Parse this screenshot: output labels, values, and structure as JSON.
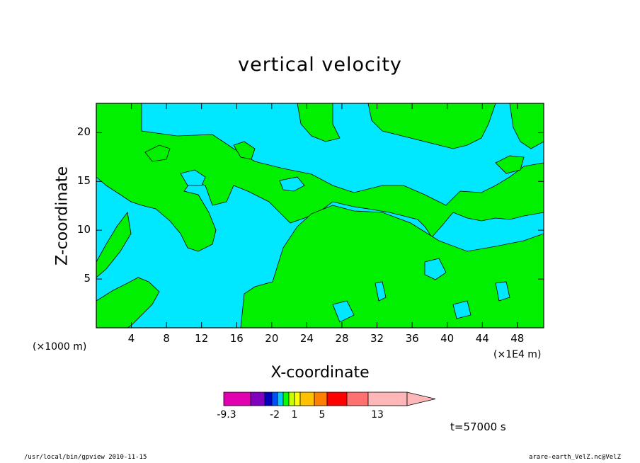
{
  "chart_data": {
    "type": "heatmap",
    "title": "vertical velocity",
    "xlabel": "X-coordinate",
    "ylabel": "Z-coordinate",
    "x_unit": "(×1E4 m)",
    "y_unit": "(×1000 m)",
    "x_ticks": [
      "4",
      "8",
      "12",
      "16",
      "20",
      "24",
      "28",
      "32",
      "36",
      "40",
      "44",
      "48"
    ],
    "y_ticks": [
      "5",
      "10",
      "15",
      "20"
    ],
    "xlim": [
      0,
      51
    ],
    "ylim": [
      0,
      23
    ],
    "colorbar": {
      "colors": [
        "#e000b0",
        "#8000c0",
        "#0000c0",
        "#0050ff",
        "#00c8ff",
        "#00ff00",
        "#c8ff00",
        "#ffff00",
        "#ffc000",
        "#ff8000",
        "#ff0000",
        "#ff7070",
        "#ffb6b6"
      ],
      "labels": [
        "-9.3",
        "-2",
        "1",
        "5",
        "13"
      ]
    },
    "fill_colors": {
      "negative": "#00e8ff",
      "positive": "#00f000"
    },
    "time_label": "t=57000 s"
  },
  "footer": {
    "left": "/usr/local/bin/gpview  2010-11-15",
    "right": "arare-earth_VelZ.nc@VelZ"
  }
}
